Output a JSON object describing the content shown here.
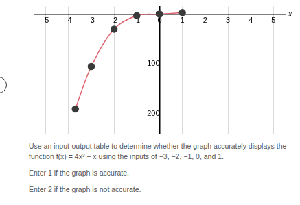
{
  "chart_data": {
    "type": "line",
    "x_label": "x",
    "x": [
      -3.7,
      -3,
      -2,
      -1,
      0,
      1
    ],
    "series": [
      {
        "values": [
          -190,
          -105,
          -30,
          -3,
          0,
          3
        ],
        "color": "#e0606e",
        "marker": "circle"
      }
    ],
    "xlim": [
      -5.5,
      5.5
    ],
    "xticks": [
      -5,
      -4,
      -3,
      -2,
      -1,
      0,
      1,
      2,
      3,
      4,
      5
    ],
    "ylim": [
      -240,
      15
    ],
    "yticks": [
      0,
      -100,
      -200
    ],
    "grid": true
  },
  "question": {
    "prompt": "Use an input-output table to determine whether the graph accurately displays the function f(x) = 4x³ − x using the inputs of −3, −2, −1, 0, and 1.",
    "options": [
      "Enter 1 if the graph is accurate.",
      "Enter 2 if the graph is not accurate."
    ]
  }
}
